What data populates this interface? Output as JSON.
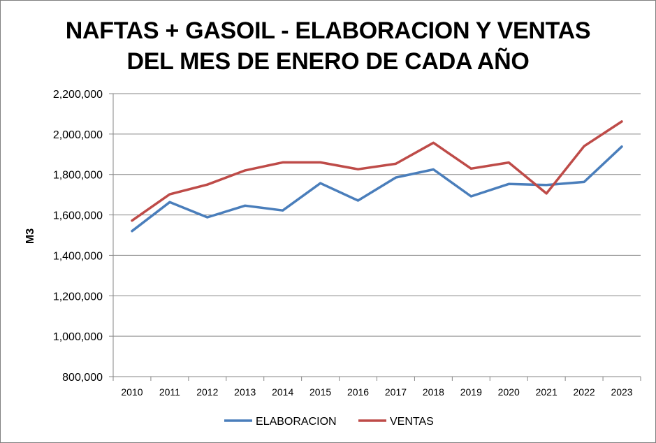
{
  "chart_data": {
    "type": "line",
    "title_line1": "NAFTAS + GASOIL - ELABORACION Y VENTAS",
    "title_line2": "DEL MES DE ENERO DE CADA AÑO",
    "xlabel": "",
    "ylabel": "M3",
    "ylim": [
      800000,
      2200000
    ],
    "yticks": [
      "800,000",
      "1,000,000",
      "1,200,000",
      "1,400,000",
      "1,600,000",
      "1,800,000",
      "2,000,000",
      "2,200,000"
    ],
    "ytick_values": [
      800000,
      1000000,
      1200000,
      1400000,
      1600000,
      1800000,
      2000000,
      2200000
    ],
    "grid": "horizontal",
    "legend_position": "bottom",
    "categories": [
      "2010",
      "2011",
      "2012",
      "2013",
      "2014",
      "2015",
      "2016",
      "2017",
      "2018",
      "2019",
      "2020",
      "2021",
      "2022",
      "2023"
    ],
    "series": [
      {
        "name": "ELABORACION",
        "color": "#4a7ebb",
        "values": [
          1520000,
          1663000,
          1588000,
          1646000,
          1622000,
          1757000,
          1671000,
          1785000,
          1825000,
          1692000,
          1753000,
          1748000,
          1763000,
          1938000
        ]
      },
      {
        "name": "VENTAS",
        "color": "#be4b48",
        "values": [
          1572000,
          1702000,
          1750000,
          1820000,
          1860000,
          1860000,
          1826000,
          1853000,
          1957000,
          1829000,
          1859000,
          1706000,
          1940000,
          2062000
        ]
      }
    ]
  }
}
